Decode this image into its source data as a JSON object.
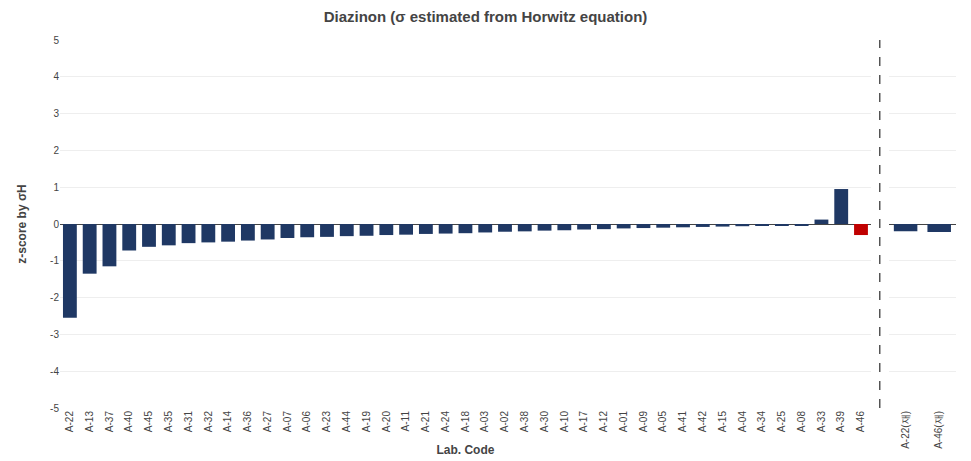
{
  "chart_data": [
    {
      "type": "bar",
      "title": "Diazinon (σ estimated from Horwitz equation)",
      "ylabel": "z-score by σH",
      "xlabel": "Lab. Code",
      "categories": [
        "A-22",
        "A-13",
        "A-37",
        "A-40",
        "A-45",
        "A-35",
        "A-31",
        "A-32",
        "A-14",
        "A-36",
        "A-27",
        "A-07",
        "A-06",
        "A-23",
        "A-44",
        "A-19",
        "A-20",
        "A-11",
        "A-21",
        "A-24",
        "A-18",
        "A-03",
        "A-02",
        "A-38",
        "A-30",
        "A-10",
        "A-17",
        "A-12",
        "A-01",
        "A-09",
        "A-05",
        "A-41",
        "A-42",
        "A-15",
        "A-04",
        "A-34",
        "A-25",
        "A-08",
        "A-33",
        "A-39",
        "A-46"
      ],
      "values": [
        -2.55,
        -1.35,
        -1.15,
        -0.72,
        -0.62,
        -0.58,
        -0.52,
        -0.5,
        -0.48,
        -0.45,
        -0.42,
        -0.38,
        -0.36,
        -0.35,
        -0.33,
        -0.32,
        -0.3,
        -0.29,
        -0.27,
        -0.26,
        -0.25,
        -0.23,
        -0.21,
        -0.2,
        -0.18,
        -0.17,
        -0.15,
        -0.14,
        -0.12,
        -0.11,
        -0.1,
        -0.09,
        -0.08,
        -0.07,
        -0.06,
        -0.05,
        -0.04,
        -0.03,
        0.12,
        0.95,
        -0.3
      ],
      "colors": [
        "#1F3864",
        "#1F3864",
        "#1F3864",
        "#1F3864",
        "#1F3864",
        "#1F3864",
        "#1F3864",
        "#1F3864",
        "#1F3864",
        "#1F3864",
        "#1F3864",
        "#1F3864",
        "#1F3864",
        "#1F3864",
        "#1F3864",
        "#1F3864",
        "#1F3864",
        "#1F3864",
        "#1F3864",
        "#1F3864",
        "#1F3864",
        "#1F3864",
        "#1F3864",
        "#1F3864",
        "#1F3864",
        "#1F3864",
        "#1F3864",
        "#1F3864",
        "#1F3864",
        "#1F3864",
        "#1F3864",
        "#1F3864",
        "#1F3864",
        "#1F3864",
        "#1F3864",
        "#1F3864",
        "#1F3864",
        "#1F3864",
        "#1F3864",
        "#1F3864",
        "#C00000"
      ],
      "ylim": [
        -5,
        5
      ],
      "yticks": [
        -5,
        -4,
        -3,
        -2,
        -1,
        0,
        1,
        2,
        3,
        4,
        5
      ],
      "grid": true
    },
    {
      "type": "bar",
      "categories": [
        "A-22(재)",
        "A-46(재)"
      ],
      "values": [
        -0.2,
        -0.22
      ],
      "colors": [
        "#1F3864",
        "#1F3864"
      ],
      "ylim": [
        -5,
        5
      ],
      "yticks": [
        -5,
        -4,
        -3,
        -2,
        -1,
        0,
        1,
        2,
        3,
        4,
        5
      ],
      "grid": true,
      "tick_labels": "x"
    }
  ]
}
